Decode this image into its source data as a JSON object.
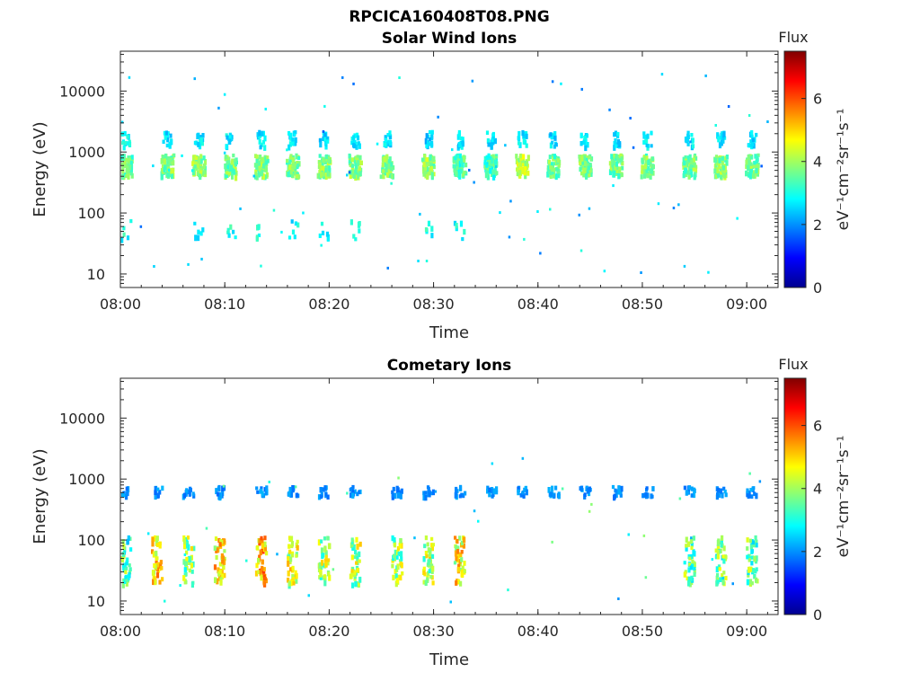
{
  "figure": {
    "main_title": "RPCICA160408T08.PNG"
  },
  "colormap": [
    "#00008f",
    "#0000ff",
    "#0080ff",
    "#00ffff",
    "#80ff80",
    "#ffff00",
    "#ff8000",
    "#ff0000",
    "#800000"
  ],
  "chart_data": [
    {
      "type": "heatmap",
      "title": "Solar Wind Ions",
      "xlabel": "Time",
      "ylabel": "Energy (eV)",
      "xlim": [
        "08:00",
        "09:03"
      ],
      "ylim": [
        6,
        45000
      ],
      "yscale": "log",
      "xticks": [
        "08:00",
        "08:10",
        "08:20",
        "08:30",
        "08:40",
        "08:50",
        "09:00"
      ],
      "yticks": [
        "10",
        "100",
        "1000",
        "10000"
      ],
      "colorbar": {
        "label": "Flux",
        "units": "eV⁻¹cm⁻²sr⁻¹s⁻¹",
        "range": [
          0,
          7.5
        ],
        "ticks": [
          "0",
          "2",
          "4",
          "6"
        ]
      },
      "bursts": [
        {
          "t": "08:00",
          "main": 3.6,
          "hi": 2.8,
          "low": 3.0
        },
        {
          "t": "08:04",
          "main": 3.8,
          "hi": 2.6,
          "low": 0
        },
        {
          "t": "08:07",
          "main": 3.8,
          "hi": 2.7,
          "low": 2.8
        },
        {
          "t": "08:10",
          "main": 3.7,
          "hi": 2.7,
          "low": 3.0
        },
        {
          "t": "08:13",
          "main": 3.8,
          "hi": 2.6,
          "low": 3.2
        },
        {
          "t": "08:16",
          "main": 3.7,
          "hi": 2.6,
          "low": 2.8
        },
        {
          "t": "08:19",
          "main": 3.8,
          "hi": 2.6,
          "low": 2.9
        },
        {
          "t": "08:22",
          "main": 3.8,
          "hi": 2.6,
          "low": 2.9
        },
        {
          "t": "08:25",
          "main": 3.7,
          "hi": 2.6,
          "low": 0
        },
        {
          "t": "08:29",
          "main": 3.9,
          "hi": 2.5,
          "low": 2.9
        },
        {
          "t": "08:32",
          "main": 3.3,
          "hi": 2.6,
          "low": 2.9
        },
        {
          "t": "08:35",
          "main": 3.3,
          "hi": 2.6,
          "low": 0
        },
        {
          "t": "08:38",
          "main": 4.2,
          "hi": 2.7,
          "low": 0
        },
        {
          "t": "08:41",
          "main": 3.6,
          "hi": 2.6,
          "low": 0
        },
        {
          "t": "08:44",
          "main": 3.7,
          "hi": 2.6,
          "low": 0
        },
        {
          "t": "08:47",
          "main": 3.6,
          "hi": 2.6,
          "low": 0
        },
        {
          "t": "08:50",
          "main": 3.7,
          "hi": 2.7,
          "low": 0
        },
        {
          "t": "08:54",
          "main": 3.7,
          "hi": 2.6,
          "low": 0
        },
        {
          "t": "08:57",
          "main": 3.8,
          "hi": 2.6,
          "low": 0
        },
        {
          "t": "09:00",
          "main": 3.7,
          "hi": 2.6,
          "low": 0
        }
      ]
    },
    {
      "type": "heatmap",
      "title": "Cometary Ions",
      "xlabel": "Time",
      "ylabel": "Energy (eV)",
      "xlim": [
        "08:00",
        "09:03"
      ],
      "ylim": [
        6,
        45000
      ],
      "yscale": "log",
      "xticks": [
        "08:00",
        "08:10",
        "08:20",
        "08:30",
        "08:40",
        "08:50",
        "09:00"
      ],
      "yticks": [
        "10",
        "100",
        "1000",
        "10000"
      ],
      "colorbar": {
        "label": "Flux",
        "units": "eV⁻¹cm⁻²sr⁻¹s⁻¹",
        "range": [
          0,
          7.5
        ],
        "ticks": [
          "0",
          "2",
          "4",
          "6"
        ]
      },
      "bursts": [
        {
          "t": "08:00",
          "hi": 2.0,
          "low": 3.4
        },
        {
          "t": "08:03",
          "hi": 2.0,
          "low": 5.0
        },
        {
          "t": "08:06",
          "hi": 2.0,
          "low": 3.9
        },
        {
          "t": "08:09",
          "hi": 2.0,
          "low": 4.8
        },
        {
          "t": "08:13",
          "hi": 2.0,
          "low": 5.2
        },
        {
          "t": "08:16",
          "hi": 2.0,
          "low": 4.4
        },
        {
          "t": "08:19",
          "hi": 2.0,
          "low": 4.0
        },
        {
          "t": "08:22",
          "hi": 2.0,
          "low": 4.0
        },
        {
          "t": "08:26",
          "hi": 2.0,
          "low": 3.9
        },
        {
          "t": "08:29",
          "hi": 2.0,
          "low": 4.1
        },
        {
          "t": "08:32",
          "hi": 2.0,
          "low": 4.6
        },
        {
          "t": "08:35",
          "hi": 2.0,
          "low": 0
        },
        {
          "t": "08:38",
          "hi": 2.0,
          "low": 0
        },
        {
          "t": "08:41",
          "hi": 2.0,
          "low": 0
        },
        {
          "t": "08:44",
          "hi": 2.0,
          "low": 0
        },
        {
          "t": "08:47",
          "hi": 2.0,
          "low": 0
        },
        {
          "t": "08:50",
          "hi": 2.0,
          "low": 0
        },
        {
          "t": "08:54",
          "hi": 2.0,
          "low": 3.6
        },
        {
          "t": "08:57",
          "hi": 2.0,
          "low": 3.6
        },
        {
          "t": "09:00",
          "hi": 2.0,
          "low": 3.4
        }
      ]
    }
  ]
}
